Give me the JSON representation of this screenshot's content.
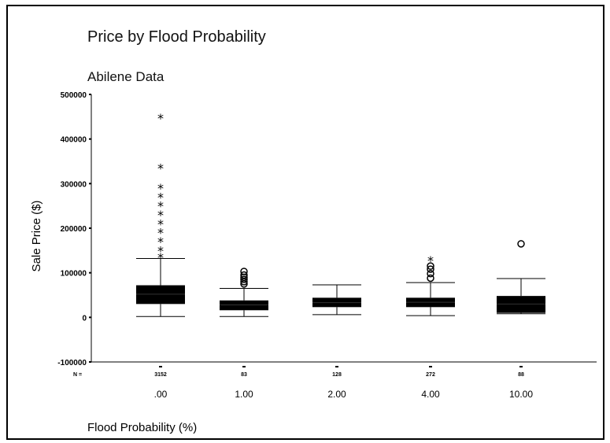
{
  "chart_data": {
    "type": "boxplot",
    "title": "Price by Flood Probability",
    "subtitle": "Abilene Data",
    "xlabel": "Flood Probability (%)",
    "ylabel": "Sale Price ($)",
    "ylim": [
      -100000,
      500000
    ],
    "yticks": [
      -100000,
      0,
      100000,
      200000,
      300000,
      400000,
      500000
    ],
    "n_label": "N =",
    "categories": [
      ".00",
      "1.00",
      "2.00",
      "4.00",
      "10.00"
    ],
    "n_values": [
      "3152",
      "83",
      "128",
      "272",
      "88"
    ],
    "boxes": [
      {
        "whisker_low": 2000,
        "q1": 30000,
        "median": 52000,
        "q3": 72000,
        "whisker_high": 132000,
        "outliers_circle": [],
        "outliers_star": [
          135000,
          150000,
          170000,
          190000,
          210000,
          230000,
          250000,
          270000,
          290000,
          335000,
          447000
        ]
      },
      {
        "whisker_low": 2000,
        "q1": 16000,
        "median": 28000,
        "q3": 38000,
        "whisker_high": 65000,
        "outliers_circle": [
          75000,
          80000,
          85000,
          90000,
          95000,
          103000
        ],
        "outliers_star": []
      },
      {
        "whisker_low": 6000,
        "q1": 23000,
        "median": 33000,
        "q3": 44000,
        "whisker_high": 73000,
        "outliers_circle": [],
        "outliers_star": []
      },
      {
        "whisker_low": 4000,
        "q1": 23000,
        "median": 34000,
        "q3": 44000,
        "whisker_high": 78000,
        "outliers_circle": [
          88000,
          98000,
          108000,
          115000
        ],
        "outliers_star": [
          128000
        ]
      },
      {
        "whisker_low": 8000,
        "q1": 10000,
        "median": 30000,
        "q3": 48000,
        "whisker_high": 87000,
        "outliers_circle": [
          165000
        ],
        "outliers_star": []
      }
    ]
  }
}
